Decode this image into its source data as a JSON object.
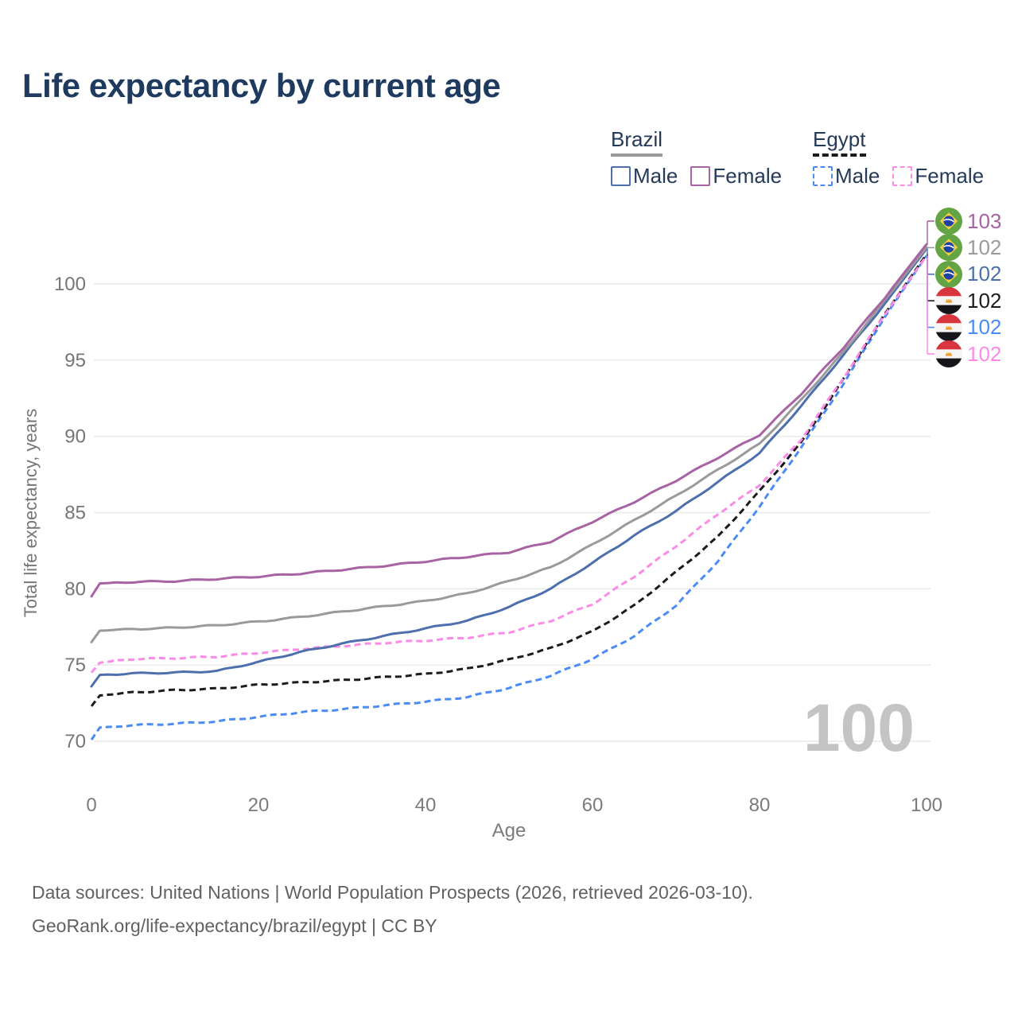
{
  "page": {
    "title": "Life expectancy by current age"
  },
  "legend": {
    "groups": [
      {
        "id": "brazil",
        "label": "Brazil",
        "underline_style": "solid",
        "underline_color": "#9A9A9A",
        "items": [
          {
            "label": "Male",
            "color": "#4D6FAD",
            "dashed": false
          },
          {
            "label": "Female",
            "color": "#A763A3",
            "dashed": false
          }
        ]
      },
      {
        "id": "egypt",
        "label": "Egypt",
        "underline_style": "dashed",
        "underline_color": "#1B1B1B",
        "items": [
          {
            "label": "Male",
            "color": "#4B8BF5",
            "dashed": true
          },
          {
            "label": "Female",
            "color": "#FB8BE7",
            "dashed": true
          }
        ]
      }
    ]
  },
  "end_labels": [
    {
      "country": "brazil",
      "flag_icon": "brazil-flag-icon",
      "value": "103",
      "color": "#A763A3",
      "series": "Brazil Female"
    },
    {
      "country": "brazil",
      "flag_icon": "brazil-flag-icon",
      "value": "102",
      "color": "#9A9A9A",
      "series": "Brazil"
    },
    {
      "country": "brazil",
      "flag_icon": "brazil-flag-icon",
      "value": "102",
      "color": "#4D6FAD",
      "series": "Brazil Male"
    },
    {
      "country": "egypt",
      "flag_icon": "egypt-flag-icon",
      "value": "102",
      "color": "#1B1B1B",
      "series": "Egypt"
    },
    {
      "country": "egypt",
      "flag_icon": "egypt-flag-icon",
      "value": "102",
      "color": "#4B8BF5",
      "series": "Egypt Male"
    },
    {
      "country": "egypt",
      "flag_icon": "egypt-flag-icon",
      "value": "102",
      "color": "#FB8BE7",
      "series": "Egypt Female"
    }
  ],
  "watermark": "100",
  "footer": {
    "line1": "Data sources: United Nations | World Population Prospects (2026, retrieved 2026-03-10).",
    "line2": "GeoRank.org/life-expectancy/brazil/egypt | CC BY"
  },
  "chart_data": {
    "type": "line",
    "title": "Life expectancy by current age",
    "xlabel": "Age",
    "ylabel": "Total life expectancy, years",
    "x": [
      0,
      1,
      5,
      10,
      15,
      20,
      25,
      30,
      35,
      40,
      45,
      50,
      55,
      60,
      65,
      70,
      75,
      80,
      85,
      90,
      95,
      100
    ],
    "series": [
      {
        "name": "Brazil Female",
        "color": "#A763A3",
        "dashed": false,
        "values": [
          79.5,
          80.35,
          80.45,
          80.5,
          80.65,
          80.8,
          81.0,
          81.25,
          81.5,
          81.8,
          82.1,
          82.4,
          83.1,
          84.4,
          85.7,
          87.1,
          88.6,
          90.1,
          92.8,
          95.8,
          99.1,
          102.6
        ]
      },
      {
        "name": "Brazil",
        "color": "#9A9A9A",
        "dashed": false,
        "values": [
          76.5,
          77.25,
          77.35,
          77.45,
          77.6,
          77.85,
          78.15,
          78.5,
          78.85,
          79.2,
          79.7,
          80.5,
          81.4,
          82.9,
          84.5,
          86.1,
          87.8,
          89.5,
          92.4,
          95.5,
          98.9,
          102.4
        ]
      },
      {
        "name": "Brazil Male",
        "color": "#4D6FAD",
        "dashed": false,
        "values": [
          73.6,
          74.35,
          74.45,
          74.5,
          74.6,
          75.2,
          75.85,
          76.4,
          76.9,
          77.4,
          77.9,
          78.8,
          80.0,
          81.7,
          83.5,
          85.1,
          87.0,
          88.9,
          92.0,
          95.3,
          98.7,
          102.3
        ]
      },
      {
        "name": "Egypt",
        "color": "#1B1B1B",
        "dashed": true,
        "values": [
          72.3,
          73.0,
          73.2,
          73.35,
          73.45,
          73.7,
          73.85,
          74.0,
          74.2,
          74.4,
          74.75,
          75.35,
          76.1,
          77.2,
          78.9,
          81.1,
          83.4,
          86.4,
          89.6,
          93.7,
          98.0,
          101.95
        ]
      },
      {
        "name": "Egypt Male",
        "color": "#4B8BF5",
        "dashed": true,
        "values": [
          70.1,
          70.9,
          71.05,
          71.15,
          71.3,
          71.6,
          71.9,
          72.1,
          72.35,
          72.6,
          72.9,
          73.5,
          74.3,
          75.4,
          76.9,
          78.9,
          81.8,
          85.4,
          89.3,
          93.4,
          97.85,
          101.85
        ]
      },
      {
        "name": "Egypt Female",
        "color": "#FB8BE7",
        "dashed": true,
        "values": [
          74.5,
          75.15,
          75.4,
          75.45,
          75.55,
          75.8,
          76.05,
          76.25,
          76.45,
          76.6,
          76.8,
          77.15,
          77.9,
          79.0,
          80.8,
          82.8,
          84.9,
          86.8,
          89.8,
          93.8,
          98.0,
          101.85
        ]
      }
    ],
    "xticks": [
      0,
      20,
      40,
      60,
      80,
      100
    ],
    "yticks": [
      70,
      75,
      80,
      85,
      90,
      95,
      100
    ],
    "xlim": [
      0,
      100
    ],
    "ylim": [
      68,
      103.5
    ],
    "grid": "horizontal",
    "legend_position": "top-right"
  }
}
